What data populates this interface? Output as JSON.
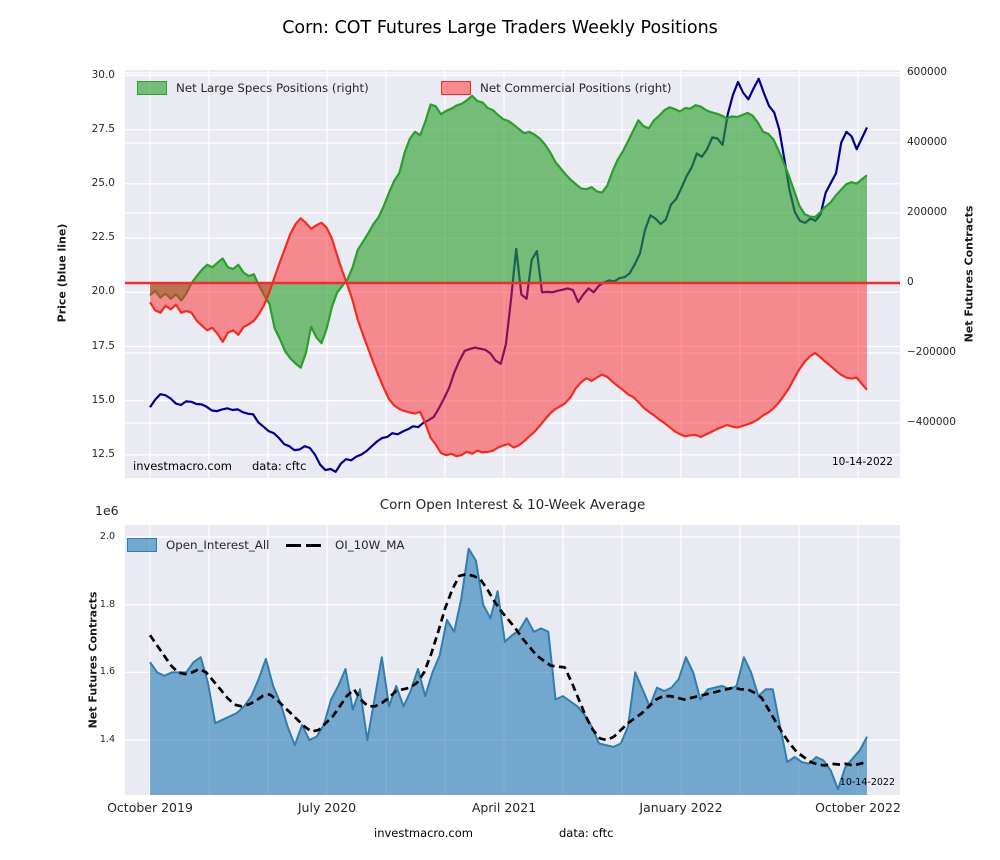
{
  "colors": {
    "plot_bg": "#eaeaf2",
    "grid": "#ffffff",
    "green_fill": "rgba(44,160,44,0.62)",
    "green_edge": "#2b9e2b",
    "red_fill": "rgba(255,40,45,0.5)",
    "red_edge": "#ee2e24",
    "zero_line": "#e83030",
    "price_line": "#00008b",
    "oi_fill": "rgba(31,119,180,0.58)",
    "oi_edge": "#2f7fae",
    "ma_line": "#000000"
  },
  "top_chart": {
    "title": "Corn: COT Futures Large Traders Weekly Positions",
    "ylabel_left": "Price (blue line)",
    "ylabel_right": "Net Futures Contracts",
    "yticks_left": [
      "30.0",
      "27.5",
      "25.0",
      "22.5",
      "20.0",
      "17.5",
      "15.0",
      "12.5"
    ],
    "yticks_right": [
      "600000",
      "400000",
      "200000",
      "0",
      "−200000",
      "−400000"
    ],
    "legend": [
      {
        "label": "Net Large Specs Positions (right)"
      },
      {
        "label": "Net Commercial Positions (right)"
      }
    ],
    "watermark": "investmacro.com",
    "source": "data: cftc",
    "date_label": "10-14-2022"
  },
  "bottom_chart": {
    "title": "Corn Open Interest & 10-Week Average",
    "offset_label": "1e6",
    "ylabel_left": "Net Futures Contracts",
    "yticks_left": [
      "2.0",
      "1.8",
      "1.6",
      "1.4"
    ],
    "legend": [
      {
        "label": "Open_Interest_All"
      },
      {
        "label": "OI_10W_MA"
      }
    ],
    "date_label": "10-14-2022"
  },
  "x_axis": {
    "labels": [
      "October 2019",
      "July 2020",
      "April 2021",
      "January 2022",
      "October 2022"
    ]
  },
  "footer": {
    "watermark": "investmacro.com",
    "source": "data: cftc"
  },
  "chart_data": [
    {
      "type": "area+line",
      "title": "Corn: COT Futures Large Traders Weekly Positions",
      "x_range": [
        "2019-10-18",
        "2022-10-14"
      ],
      "x_tick_labels": [
        "October 2019",
        "July 2020",
        "April 2021",
        "January 2022",
        "October 2022"
      ],
      "x_gridline_count": 13,
      "ylabel_left": "Price (blue line)",
      "ylim_left": [
        11.45,
        30.25
      ],
      "yticks_left": [
        30.0,
        27.5,
        25.0,
        22.5,
        20.0,
        17.5,
        15.0,
        12.5
      ],
      "ylabel_right": "Net Futures Contracts",
      "ylim_right": [
        -557000,
        608000
      ],
      "yticks_right": [
        600000,
        400000,
        200000,
        0,
        -200000,
        -400000
      ],
      "legend_position": "upper left, frameless",
      "grid": "on (white, seaborn darkgrid)",
      "zero_line": 0,
      "series": [
        {
          "name": "Net Large Specs Positions (right)",
          "axis": "right",
          "style": "area from 0, green",
          "unit": "contracts (thousands)",
          "values": [
            -35,
            -22,
            -42,
            -30,
            -45,
            -32,
            -50,
            -30,
            0,
            20,
            38,
            52,
            45,
            58,
            70,
            45,
            40,
            52,
            30,
            20,
            25,
            -8,
            -35,
            -60,
            -130,
            -160,
            -195,
            -215,
            -230,
            -242,
            -200,
            -125,
            -155,
            -172,
            -130,
            -70,
            -28,
            -8,
            10,
            45,
            95,
            118,
            142,
            168,
            188,
            220,
            258,
            292,
            315,
            372,
            412,
            432,
            422,
            462,
            510,
            505,
            482,
            492,
            498,
            507,
            512,
            522,
            535,
            520,
            516,
            500,
            494,
            480,
            468,
            463,
            452,
            440,
            428,
            432,
            424,
            413,
            396,
            374,
            346,
            328,
            310,
            295,
            282,
            270,
            268,
            274,
            262,
            258,
            278,
            318,
            352,
            376,
            405,
            435,
            465,
            448,
            442,
            465,
            478,
            494,
            502,
            497,
            490,
            500,
            498,
            508,
            504,
            494,
            488,
            484,
            479,
            470,
            476,
            474,
            480,
            486,
            478,
            458,
            432,
            426,
            410,
            378,
            342,
            305,
            262,
            220,
            197,
            190,
            188,
            202,
            218,
            230,
            250,
            266,
            282,
            288,
            284,
            296,
            308
          ]
        },
        {
          "name": "Net Commercial Positions (right)",
          "axis": "right",
          "style": "area from 0, red",
          "unit": "contracts (thousands)",
          "values": [
            -55,
            -78,
            -85,
            -65,
            -75,
            -62,
            -85,
            -80,
            -85,
            -108,
            -122,
            -135,
            -128,
            -145,
            -168,
            -142,
            -135,
            -148,
            -126,
            -118,
            -108,
            -88,
            -62,
            -25,
            18,
            60,
            100,
            140,
            168,
            185,
            172,
            155,
            165,
            172,
            158,
            128,
            80,
            35,
            -5,
            -50,
            -105,
            -148,
            -188,
            -228,
            -265,
            -300,
            -332,
            -350,
            -360,
            -366,
            -370,
            -373,
            -368,
            -402,
            -442,
            -462,
            -486,
            -492,
            -488,
            -495,
            -491,
            -482,
            -488,
            -479,
            -484,
            -483,
            -479,
            -470,
            -464,
            -460,
            -470,
            -464,
            -452,
            -438,
            -425,
            -408,
            -390,
            -373,
            -360,
            -352,
            -342,
            -325,
            -300,
            -283,
            -272,
            -280,
            -270,
            -262,
            -268,
            -282,
            -294,
            -305,
            -318,
            -326,
            -340,
            -356,
            -368,
            -378,
            -390,
            -400,
            -412,
            -424,
            -432,
            -438,
            -435,
            -434,
            -440,
            -433,
            -426,
            -418,
            -412,
            -406,
            -410,
            -413,
            -409,
            -404,
            -398,
            -390,
            -378,
            -370,
            -358,
            -342,
            -322,
            -300,
            -272,
            -246,
            -225,
            -210,
            -200,
            -212,
            -225,
            -237,
            -250,
            -262,
            -270,
            -273,
            -270,
            -288,
            -305
          ]
        },
        {
          "name": "Price",
          "axis": "left",
          "style": "navy line",
          "unit": "price",
          "values": [
            14.7,
            15.05,
            15.3,
            15.25,
            15.1,
            14.87,
            14.8,
            14.97,
            14.95,
            14.85,
            14.83,
            14.72,
            14.55,
            14.52,
            14.6,
            14.65,
            14.57,
            14.6,
            14.47,
            14.4,
            14.37,
            14.0,
            13.8,
            13.6,
            13.5,
            13.28,
            13.0,
            12.9,
            12.72,
            12.75,
            12.9,
            12.82,
            12.5,
            12.05,
            11.8,
            11.85,
            11.72,
            12.1,
            12.3,
            12.25,
            12.42,
            12.52,
            12.68,
            12.9,
            13.12,
            13.28,
            13.33,
            13.5,
            13.45,
            13.58,
            13.68,
            13.82,
            13.78,
            13.98,
            14.1,
            14.25,
            14.65,
            15.1,
            15.6,
            16.3,
            16.85,
            17.3,
            17.38,
            17.45,
            17.4,
            17.35,
            17.18,
            16.85,
            16.7,
            17.6,
            19.7,
            22.0,
            19.9,
            19.7,
            21.5,
            21.9,
            20.0,
            20.02,
            20.0,
            20.07,
            20.12,
            20.18,
            20.1,
            19.55,
            19.9,
            20.18,
            20.0,
            20.3,
            20.45,
            20.55,
            20.5,
            20.65,
            20.7,
            20.88,
            21.3,
            21.8,
            22.9,
            23.55,
            23.4,
            23.15,
            23.35,
            24.05,
            24.3,
            24.8,
            25.35,
            25.75,
            26.4,
            26.25,
            26.6,
            27.15,
            27.1,
            26.8,
            28.2,
            29.1,
            29.7,
            29.2,
            28.9,
            29.4,
            29.85,
            29.2,
            28.6,
            28.3,
            27.5,
            26.1,
            24.7,
            23.7,
            23.3,
            23.2,
            23.4,
            23.3,
            23.6,
            24.6,
            25.05,
            25.5,
            26.9,
            27.4,
            27.2,
            26.6,
            27.1,
            27.6
          ]
        }
      ],
      "annotations": [
        "investmacro.com",
        "data: cftc",
        "10-14-2022"
      ]
    },
    {
      "type": "area+line",
      "title": "Corn Open Interest & 10-Week Average",
      "x_range": [
        "2019-10-18",
        "2022-10-14"
      ],
      "x_tick_labels": [
        "October 2019",
        "July 2020",
        "April 2021",
        "January 2022",
        "October 2022"
      ],
      "x_gridline_count": 13,
      "ylabel_left": "Net Futures Contracts",
      "scale_offset": "1e6",
      "ylim": [
        1.238,
        2.035
      ],
      "yticks_left": [
        2.0,
        1.8,
        1.6,
        1.4
      ],
      "legend_position": "upper left, frameless",
      "grid": "on (white, seaborn darkgrid)",
      "series": [
        {
          "name": "Open_Interest_All",
          "style": "steelblue area",
          "unit": "contracts (millions)",
          "values": [
            1.63,
            1.6,
            1.59,
            1.6,
            1.6,
            1.6,
            1.63,
            1.645,
            1.57,
            1.45,
            1.46,
            1.47,
            1.48,
            1.5,
            1.53,
            1.58,
            1.64,
            1.56,
            1.51,
            1.44,
            1.385,
            1.445,
            1.4,
            1.41,
            1.445,
            1.52,
            1.56,
            1.61,
            1.49,
            1.55,
            1.4,
            1.52,
            1.645,
            1.5,
            1.56,
            1.5,
            1.545,
            1.61,
            1.53,
            1.6,
            1.65,
            1.755,
            1.72,
            1.82,
            1.965,
            1.93,
            1.8,
            1.76,
            1.84,
            1.69,
            1.71,
            1.725,
            1.76,
            1.72,
            1.73,
            1.72,
            1.52,
            1.53,
            1.515,
            1.5,
            1.475,
            1.44,
            1.39,
            1.385,
            1.38,
            1.39,
            1.44,
            1.6,
            1.55,
            1.5,
            1.555,
            1.545,
            1.555,
            1.58,
            1.645,
            1.6,
            1.52,
            1.55,
            1.555,
            1.56,
            1.55,
            1.56,
            1.645,
            1.6,
            1.53,
            1.55,
            1.55,
            1.44,
            1.335,
            1.35,
            1.335,
            1.33,
            1.35,
            1.34,
            1.31,
            1.255,
            1.32,
            1.345,
            1.37,
            1.41
          ]
        },
        {
          "name": "OI_10W_MA",
          "style": "black dashed line",
          "unit": "contracts (millions)",
          "values": [
            1.71,
            1.68,
            1.65,
            1.62,
            1.6,
            1.595,
            1.6,
            1.61,
            1.6,
            1.575,
            1.55,
            1.525,
            1.505,
            1.5,
            1.505,
            1.515,
            1.53,
            1.535,
            1.52,
            1.5,
            1.48,
            1.46,
            1.44,
            1.425,
            1.43,
            1.45,
            1.47,
            1.5,
            1.53,
            1.55,
            1.52,
            1.5,
            1.5,
            1.51,
            1.525,
            1.545,
            1.55,
            1.555,
            1.57,
            1.6,
            1.655,
            1.72,
            1.79,
            1.845,
            1.885,
            1.89,
            1.885,
            1.875,
            1.845,
            1.81,
            1.78,
            1.755,
            1.73,
            1.7,
            1.675,
            1.65,
            1.635,
            1.62,
            1.617,
            1.615,
            1.57,
            1.52,
            1.47,
            1.43,
            1.405,
            1.4,
            1.41,
            1.43,
            1.45,
            1.465,
            1.48,
            1.5,
            1.52,
            1.53,
            1.53,
            1.525,
            1.52,
            1.525,
            1.53,
            1.535,
            1.54,
            1.545,
            1.55,
            1.555,
            1.55,
            1.55,
            1.54,
            1.525,
            1.49,
            1.455,
            1.42,
            1.39,
            1.365,
            1.35,
            1.335,
            1.328,
            1.325,
            1.33,
            1.328,
            1.33,
            1.325,
            1.33,
            1.335
          ]
        }
      ],
      "annotations": [
        "10-14-2022",
        "investmacro.com",
        "data: cftc"
      ]
    }
  ]
}
